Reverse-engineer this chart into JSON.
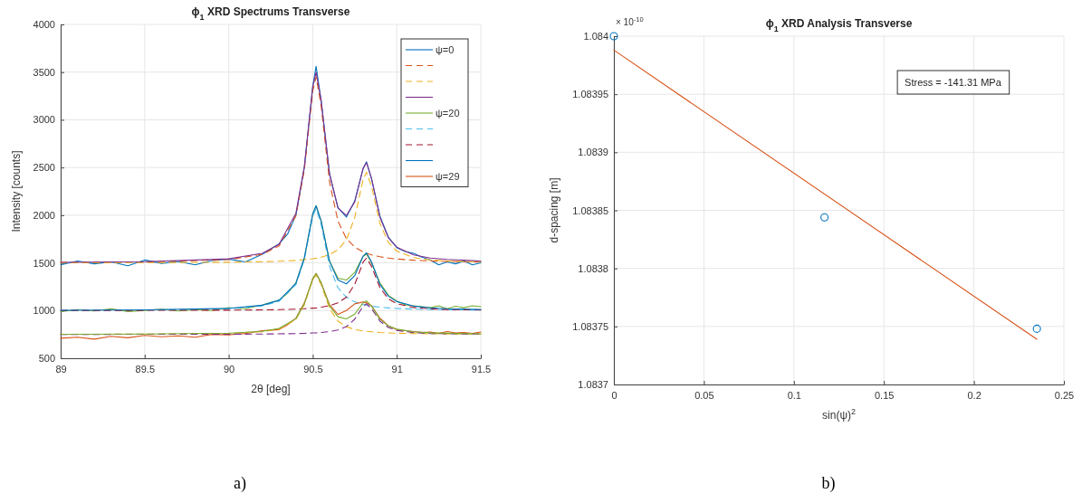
{
  "chart_data": [
    {
      "type": "line",
      "title": "ϕ$_{1}$ XRD Spectrums Transverse",
      "xlabel": "2θ [deg]",
      "ylabel": "Intensity [counts]",
      "xlim": [
        89,
        91.5
      ],
      "xticks": [
        89,
        89.5,
        90,
        90.5,
        91,
        91.5
      ],
      "ylim": [
        500,
        4000
      ],
      "yticks": [
        500,
        1000,
        1500,
        2000,
        2500,
        3000,
        3500,
        4000
      ],
      "grid": true,
      "legend": "top right",
      "annotations": [
        "a)"
      ],
      "series": [
        {
          "name": "ψ=0",
          "color": "#0072bd",
          "line_style": "solid",
          "x": [
            89,
            89.1,
            89.2,
            89.3,
            89.4,
            89.5,
            89.6,
            89.7,
            89.8,
            89.9,
            90,
            90.1,
            90.2,
            90.3,
            90.35,
            90.4,
            90.45,
            90.5,
            90.52,
            90.55,
            90.6,
            90.65,
            90.7,
            90.75,
            90.8,
            90.82,
            90.85,
            90.9,
            90.95,
            91,
            91.05,
            91.1,
            91.15,
            91.2,
            91.25,
            91.3,
            91.35,
            91.4,
            91.45,
            91.5
          ],
          "values": [
            1480,
            1520,
            1490,
            1510,
            1470,
            1530,
            1495,
            1515,
            1480,
            1525,
            1540,
            1510,
            1590,
            1700,
            1800,
            2000,
            2500,
            3350,
            3560,
            3200,
            2430,
            2080,
            1980,
            2150,
            2490,
            2560,
            2380,
            1990,
            1770,
            1660,
            1620,
            1600,
            1560,
            1530,
            1480,
            1510,
            1490,
            1520,
            1480,
            1500
          ]
        },
        {
          "color": "#d95319",
          "line_style": "dashed",
          "x": [
            89,
            89.5,
            90,
            90.2,
            90.3,
            90.4,
            90.45,
            90.5,
            90.52,
            90.55,
            90.6,
            90.65,
            90.7,
            90.75,
            90.8,
            90.82,
            90.85,
            90.9,
            90.95,
            91,
            91.1,
            91.2,
            91.3,
            91.5
          ],
          "values": [
            1504,
            1509,
            1535,
            1589,
            1679,
            1995,
            2475,
            3302,
            3450,
            3146,
            2348,
            1937,
            1756,
            1665,
            1615,
            1600,
            1584,
            1564,
            1550,
            1541,
            1528,
            1520,
            1516,
            1510
          ]
        },
        {
          "color": "#edb120",
          "line_style": "dashed",
          "x": [
            89,
            89.5,
            90,
            90.2,
            90.3,
            90.4,
            90.45,
            90.5,
            90.52,
            90.55,
            90.6,
            90.65,
            90.7,
            90.75,
            90.8,
            90.82,
            90.85,
            90.9,
            90.95,
            91,
            91.1,
            91.2,
            91.3,
            91.5
          ],
          "values": [
            1501,
            1503,
            1507,
            1512,
            1517,
            1526,
            1533,
            1543,
            1549,
            1560,
            1587,
            1638,
            1741,
            1975,
            2378,
            2450,
            2302,
            1913,
            1713,
            1624,
            1556,
            1531,
            1520,
            1510
          ]
        },
        {
          "color": "#7e2f8e",
          "line_style": "solid",
          "x": [
            89,
            89.5,
            90,
            90.2,
            90.3,
            90.4,
            90.45,
            90.5,
            90.52,
            90.55,
            90.6,
            90.65,
            90.7,
            90.75,
            90.8,
            90.82,
            90.85,
            90.9,
            90.95,
            91,
            91.1,
            91.2,
            91.3,
            91.5
          ],
          "values": [
            1505,
            1512,
            1542,
            1601,
            1696,
            2021,
            2508,
            3345,
            3499,
            3206,
            2435,
            2075,
            1997,
            2140,
            2493,
            2550,
            2386,
            1977,
            1763,
            1665,
            1584,
            1551,
            1536,
            1520
          ]
        },
        {
          "name": "ψ=20",
          "color": "#77ac30",
          "line_style": "solid",
          "x": [
            89,
            89.1,
            89.2,
            89.3,
            89.4,
            89.5,
            89.6,
            89.7,
            89.8,
            89.9,
            90,
            90.1,
            90.2,
            90.3,
            90.35,
            90.4,
            90.45,
            90.5,
            90.52,
            90.55,
            90.6,
            90.65,
            90.7,
            90.75,
            90.8,
            90.82,
            90.85,
            90.9,
            90.95,
            91,
            91.05,
            91.1,
            91.15,
            91.2,
            91.25,
            91.3,
            91.35,
            91.4,
            91.45,
            91.5
          ],
          "values": [
            990,
            1010,
            995,
            1020,
            990,
            1000,
            1015,
            995,
            1010,
            1000,
            1030,
            1020,
            1060,
            1110,
            1180,
            1290,
            1550,
            2010,
            2100,
            1940,
            1520,
            1340,
            1320,
            1400,
            1570,
            1590,
            1500,
            1290,
            1160,
            1100,
            1060,
            1050,
            1040,
            1030,
            1050,
            1020,
            1045,
            1030,
            1050,
            1040
          ]
        },
        {
          "color": "#4dbeee",
          "line_style": "dashed",
          "x": [
            89,
            89.5,
            90,
            90.2,
            90.3,
            90.4,
            90.45,
            90.5,
            90.52,
            90.55,
            90.6,
            90.65,
            90.7,
            90.75,
            90.8,
            90.82,
            90.85,
            90.9,
            90.95,
            91,
            91.1,
            91.2,
            91.3,
            91.5
          ],
          "values": [
            1002,
            1005,
            1019,
            1049,
            1098,
            1272,
            1535,
            1989,
            2070,
            1903,
            1465,
            1240,
            1140,
            1091,
            1063,
            1055,
            1046,
            1035,
            1028,
            1022,
            1015,
            1011,
            1009,
            1005
          ]
        },
        {
          "color": "#a2142f",
          "line_style": "dashed",
          "x": [
            89,
            89.5,
            90,
            90.2,
            90.3,
            90.4,
            90.45,
            90.5,
            90.52,
            90.55,
            90.6,
            90.65,
            90.7,
            90.75,
            90.8,
            90.82,
            90.85,
            90.9,
            90.95,
            91,
            91.1,
            91.2,
            91.3,
            91.5
          ],
          "values": [
            1001,
            1002,
            1004,
            1007,
            1010,
            1015,
            1019,
            1025,
            1028,
            1035,
            1051,
            1080,
            1140,
            1275,
            1508,
            1550,
            1464,
            1239,
            1123,
            1072,
            1032,
            1018,
            1011,
            1006
          ]
        },
        {
          "color": "#0072bd",
          "line_style": "solid",
          "x": [
            89,
            89.5,
            90,
            90.2,
            90.3,
            90.4,
            90.45,
            90.5,
            90.52,
            90.55,
            90.6,
            90.65,
            90.7,
            90.75,
            90.8,
            90.82,
            90.85,
            90.9,
            90.95,
            91,
            91.1,
            91.2,
            91.3,
            91.5
          ],
          "values": [
            1003,
            1007,
            1023,
            1056,
            1108,
            1287,
            1554,
            2014,
            2098,
            1938,
            1516,
            1320,
            1280,
            1366,
            1571,
            1605,
            1510,
            1274,
            1151,
            1094,
            1047,
            1029,
            1020,
            1011
          ]
        },
        {
          "name": "ψ=29",
          "color": "#d95319",
          "line_style": "solid",
          "x": [
            89,
            89.1,
            89.2,
            89.3,
            89.4,
            89.5,
            89.6,
            89.7,
            89.8,
            89.9,
            90,
            90.1,
            90.2,
            90.3,
            90.35,
            90.4,
            90.45,
            90.5,
            90.52,
            90.55,
            90.6,
            90.65,
            90.7,
            90.75,
            90.8,
            90.82,
            90.85,
            90.9,
            90.95,
            91,
            91.05,
            91.1,
            91.15,
            91.2,
            91.25,
            91.3,
            91.35,
            91.4,
            91.45,
            91.5
          ],
          "values": [
            710,
            720,
            700,
            730,
            715,
            740,
            725,
            735,
            720,
            750,
            745,
            760,
            790,
            800,
            850,
            920,
            1080,
            1330,
            1390,
            1290,
            1060,
            960,
            1000,
            1070,
            1090,
            1080,
            1050,
            920,
            840,
            800,
            790,
            780,
            770,
            775,
            760,
            780,
            765,
            770,
            760,
            775
          ]
        },
        {
          "color": "#edb120",
          "line_style": "dashed",
          "x": [
            89,
            89.5,
            90,
            90.2,
            90.3,
            90.4,
            90.45,
            90.5,
            90.52,
            90.55,
            90.6,
            90.65,
            90.7,
            90.75,
            90.8,
            90.82,
            90.85,
            90.9,
            90.95,
            91,
            91.1,
            91.2,
            91.3,
            91.5
          ],
          "values": [
            751,
            753,
            761,
            778,
            807,
            907,
            1060,
            1323,
            1370,
            1273,
            1020,
            889,
            831,
            802,
            786,
            782,
            777,
            770,
            766,
            763,
            759,
            757,
            755,
            753
          ]
        },
        {
          "color": "#7e2f8e",
          "line_style": "dashed",
          "x": [
            89,
            89.5,
            90,
            90.2,
            90.3,
            90.4,
            90.45,
            90.5,
            90.52,
            90.55,
            90.6,
            90.65,
            90.7,
            90.75,
            90.8,
            90.82,
            90.85,
            90.9,
            90.95,
            91,
            91.1,
            91.2,
            91.3,
            91.5
          ],
          "values": [
            750,
            751,
            752,
            754,
            756,
            759,
            761,
            765,
            766,
            770,
            779,
            796,
            831,
            910,
            1046,
            1070,
            1020,
            889,
            822,
            792,
            769,
            760,
            757,
            753
          ]
        },
        {
          "color": "#77ac30",
          "line_style": "solid",
          "x": [
            89,
            89.5,
            90,
            90.2,
            90.3,
            90.4,
            90.45,
            90.5,
            90.52,
            90.55,
            90.6,
            90.65,
            90.7,
            90.75,
            90.8,
            90.82,
            90.85,
            90.9,
            90.95,
            91,
            91.1,
            91.2,
            91.3,
            91.5
          ],
          "values": [
            751,
            754,
            763,
            782,
            813,
            916,
            1071,
            1338,
            1386,
            1293,
            1049,
            935,
            912,
            962,
            1082,
            1102,
            1047,
            909,
            838,
            805,
            778,
            767,
            762,
            756
          ]
        }
      ]
    },
    {
      "type": "scatter",
      "title": "ϕ$_{1}$ XRD Analysis Transverse",
      "xlabel": "sin(ψ)$^{2}$",
      "ylabel": "d-spacing [m]",
      "xlim": [
        0,
        0.25
      ],
      "xticks": [
        0,
        0.05,
        0.1,
        0.15,
        0.2,
        0.25
      ],
      "ylim": [
        1.0837,
        1.084
      ],
      "yticks": [
        1.0837,
        1.08375,
        1.0838,
        1.08385,
        1.0839,
        1.08395,
        1.084
      ],
      "grid": true,
      "annotations": [
        "× 10$^{-10}$",
        "Stress = -141.31 MPa",
        "b)"
      ],
      "series": [
        {
          "color": "#0072bd",
          "marker": "circle",
          "x": [
            0,
            0.117,
            0.235
          ],
          "values": [
            1.084,
            1.083844,
            1.083748
          ]
        },
        {
          "type": "line",
          "color": "#d95319",
          "line_style": "solid",
          "x": [
            0,
            0.235
          ],
          "values": [
            1.083988,
            1.083739
          ]
        }
      ]
    }
  ]
}
